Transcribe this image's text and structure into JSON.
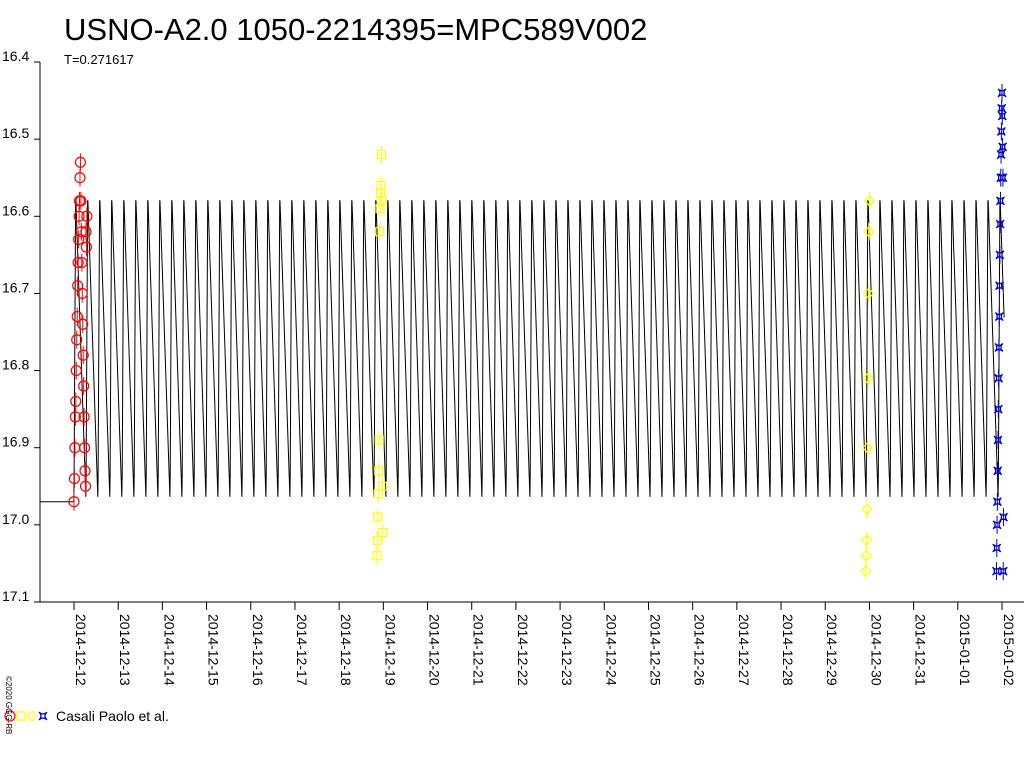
{
  "chart_data": {
    "type": "scatter",
    "title": "USNO-A2.0 1050-2214395=MPC589V002",
    "subtitle": "T=0.271617",
    "xlabel": "",
    "ylabel": "",
    "y_inverted": true,
    "ylim": [
      17.1,
      16.4
    ],
    "yticks": [
      "16.4",
      "16.5",
      "16.6",
      "16.7",
      "16.8",
      "16.9",
      "17.0",
      "17.1"
    ],
    "xlim": [
      "2014-12-11",
      "2015-01-02"
    ],
    "xticks": [
      "2014-12-12",
      "2014-12-13",
      "2014-12-14",
      "2014-12-15",
      "2014-12-16",
      "2014-12-17",
      "2014-12-18",
      "2014-12-19",
      "2014-12-20",
      "2014-12-21",
      "2014-12-22",
      "2014-12-23",
      "2014-12-24",
      "2014-12-25",
      "2014-12-26",
      "2014-12-27",
      "2014-12-28",
      "2014-12-29",
      "2014-12-30",
      "2014-12-31",
      "2015-01-01",
      "2015-01-02"
    ],
    "model": {
      "name": "",
      "color": "#000000",
      "period_days": 0.271617,
      "mag_max": 16.57,
      "mag_min": 16.97
    },
    "series": [
      {
        "marker": "circle",
        "color": "#ff0000",
        "x": [
          "2014-12-12 00:00",
          "2014-12-12 00:15",
          "2014-12-12 00:30",
          "2014-12-12 00:45",
          "2014-12-12 01:00",
          "2014-12-12 01:15",
          "2014-12-12 01:30",
          "2014-12-12 01:45",
          "2014-12-12 02:00",
          "2014-12-12 02:15",
          "2014-12-12 02:30",
          "2014-12-12 02:45",
          "2014-12-12 03:00",
          "2014-12-12 03:15",
          "2014-12-12 03:30",
          "2014-12-12 03:45",
          "2014-12-12 04:00",
          "2014-12-12 04:15",
          "2014-12-12 04:30",
          "2014-12-12 04:45",
          "2014-12-12 05:00",
          "2014-12-12 05:15",
          "2014-12-12 05:30",
          "2014-12-12 05:45",
          "2014-12-12 06:00",
          "2014-12-12 06:15",
          "2014-12-12 06:30",
          "2014-12-12 06:45",
          "2014-12-12 07:00"
        ],
        "y": [
          16.97,
          16.94,
          16.9,
          16.86,
          16.84,
          16.8,
          16.76,
          16.73,
          16.69,
          16.66,
          16.63,
          16.6,
          16.58,
          16.55,
          16.53,
          16.58,
          16.62,
          16.66,
          16.7,
          16.74,
          16.78,
          16.82,
          16.86,
          16.9,
          16.93,
          16.95,
          16.62,
          16.64,
          16.6
        ]
      },
      {
        "marker": "square",
        "color": "#ffff00",
        "x": [
          "2014-12-18 20:30",
          "2014-12-18 20:45",
          "2014-12-18 21:00",
          "2014-12-18 21:15",
          "2014-12-18 21:30",
          "2014-12-18 21:45",
          "2014-12-18 22:00",
          "2014-12-18 22:15",
          "2014-12-18 22:30",
          "2014-12-18 22:45",
          "2014-12-18 23:00",
          "2014-12-18 23:15",
          "2014-12-18 23:30",
          "2014-12-18 23:45"
        ],
        "y": [
          17.04,
          17.02,
          16.99,
          16.96,
          16.93,
          16.89,
          16.62,
          16.59,
          16.57,
          16.56,
          16.52,
          16.58,
          16.95,
          17.01
        ]
      },
      {
        "marker": "diamond",
        "color": "#ffff00",
        "x": [
          "2014-12-29 22:00",
          "2014-12-29 22:15",
          "2014-12-29 22:30",
          "2014-12-29 22:45",
          "2014-12-29 23:00",
          "2014-12-29 23:15",
          "2014-12-29 23:30",
          "2014-12-29 23:45",
          "2014-12-30 00:00"
        ],
        "y": [
          17.06,
          17.04,
          17.02,
          16.98,
          16.9,
          16.81,
          16.7,
          16.62,
          16.58
        ]
      },
      {
        "marker": "star",
        "color": "#0000cc",
        "x": [
          "2015-01-01 21:00",
          "2015-01-01 21:10",
          "2015-01-01 21:20",
          "2015-01-01 21:30",
          "2015-01-01 21:40",
          "2015-01-01 21:50",
          "2015-01-01 22:00",
          "2015-01-01 22:10",
          "2015-01-01 22:20",
          "2015-01-01 22:30",
          "2015-01-01 22:40",
          "2015-01-01 22:50",
          "2015-01-01 23:00",
          "2015-01-01 23:10",
          "2015-01-01 23:20",
          "2015-01-01 23:30",
          "2015-01-01 23:40",
          "2015-01-01 23:50",
          "2015-01-02 00:00",
          "2015-01-02 00:10",
          "2015-01-02 00:20",
          "2015-01-02 00:30",
          "2015-01-02 00:40",
          "2015-01-02 00:50"
        ],
        "y": [
          17.06,
          17.03,
          17.0,
          16.97,
          16.93,
          16.89,
          16.85,
          16.81,
          16.77,
          16.73,
          16.69,
          16.65,
          16.61,
          16.58,
          16.55,
          16.52,
          16.49,
          16.46,
          16.44,
          16.47,
          16.51,
          16.55,
          17.06,
          16.99
        ]
      }
    ],
    "legend": {
      "text": "Casali Paolo et al.",
      "position": "bottom-left"
    },
    "copyright": "©2020 GGG-RB"
  }
}
